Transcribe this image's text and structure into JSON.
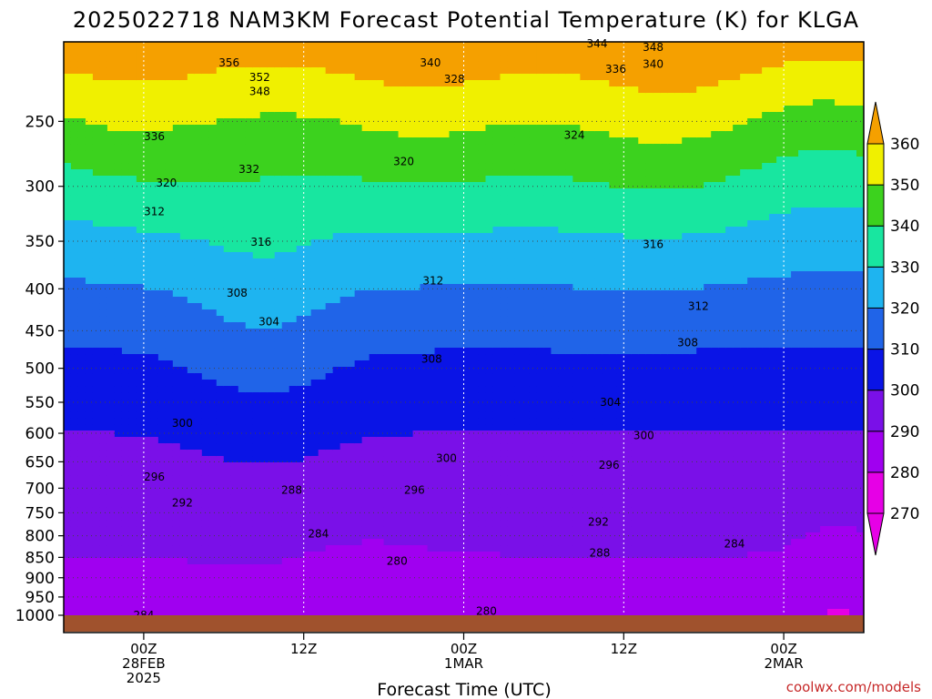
{
  "chart_data": {
    "type": "contour",
    "title": "2025022718 NAM3KM Forecast Potential Temperature (K) for KLGA",
    "xlabel": "Forecast Time (UTC)",
    "ylabel": "",
    "credit": "coolwx.com/models",
    "x_ticks": [
      {
        "hour": 6,
        "lines": [
          "00Z",
          "28FEB",
          "2025"
        ]
      },
      {
        "hour": 18,
        "lines": [
          "12Z"
        ]
      },
      {
        "hour": 30,
        "lines": [
          "00Z",
          "1MAR"
        ]
      },
      {
        "hour": 42,
        "lines": [
          "12Z"
        ]
      },
      {
        "hour": 54,
        "lines": [
          "00Z",
          "2MAR"
        ]
      }
    ],
    "x_range_hours": [
      0,
      60
    ],
    "y_ticks": [
      250,
      300,
      350,
      400,
      450,
      500,
      550,
      600,
      650,
      700,
      750,
      800,
      850,
      900,
      950,
      1000
    ],
    "y_range_hpa": [
      200,
      1000
    ],
    "y_scale": "log-pressure",
    "grid": true,
    "colorbar": {
      "levels": [
        270,
        280,
        290,
        300,
        310,
        320,
        330,
        340,
        350,
        360
      ],
      "colors": [
        "#e600e6",
        "#a000f0",
        "#7a10e8",
        "#0a14e6",
        "#2064e8",
        "#1eb4f0",
        "#18e6a0",
        "#3cd21e",
        "#f0f000",
        "#f5a000"
      ],
      "placement": "right"
    },
    "contour_interval": 4,
    "contour_labels": [
      {
        "value": "356",
        "hour": 12.4,
        "p": 212
      },
      {
        "value": "352",
        "hour": 14.7,
        "p": 221
      },
      {
        "value": "348",
        "hour": 14.7,
        "p": 230
      },
      {
        "value": "336",
        "hour": 6.8,
        "p": 261
      },
      {
        "value": "332",
        "hour": 13.9,
        "p": 286
      },
      {
        "value": "320",
        "hour": 7.7,
        "p": 297
      },
      {
        "value": "312",
        "hour": 6.8,
        "p": 322
      },
      {
        "value": "316",
        "hour": 14.8,
        "p": 351
      },
      {
        "value": "308",
        "hour": 13.0,
        "p": 405
      },
      {
        "value": "304",
        "hour": 15.4,
        "p": 439
      },
      {
        "value": "320",
        "hour": 25.5,
        "p": 280
      },
      {
        "value": "328",
        "hour": 29.3,
        "p": 222
      },
      {
        "value": "340",
        "hour": 27.5,
        "p": 212
      },
      {
        "value": "344",
        "hour": 40.0,
        "p": 201
      },
      {
        "value": "348",
        "hour": 44.2,
        "p": 203
      },
      {
        "value": "336",
        "hour": 41.4,
        "p": 216
      },
      {
        "value": "340",
        "hour": 44.2,
        "p": 213
      },
      {
        "value": "324",
        "hour": 38.3,
        "p": 260
      },
      {
        "value": "316",
        "hour": 44.2,
        "p": 353
      },
      {
        "value": "312",
        "hour": 27.7,
        "p": 391
      },
      {
        "value": "312",
        "hour": 47.6,
        "p": 420
      },
      {
        "value": "308",
        "hour": 27.6,
        "p": 487
      },
      {
        "value": "308",
        "hour": 46.8,
        "p": 465
      },
      {
        "value": "304",
        "hour": 41.0,
        "p": 550
      },
      {
        "value": "300",
        "hour": 8.9,
        "p": 583
      },
      {
        "value": "300",
        "hour": 28.7,
        "p": 644
      },
      {
        "value": "300",
        "hour": 43.5,
        "p": 604
      },
      {
        "value": "296",
        "hour": 6.8,
        "p": 678
      },
      {
        "value": "296",
        "hour": 26.3,
        "p": 704
      },
      {
        "value": "296",
        "hour": 40.9,
        "p": 656
      },
      {
        "value": "292",
        "hour": 8.9,
        "p": 729
      },
      {
        "value": "292",
        "hour": 40.1,
        "p": 770
      },
      {
        "value": "288",
        "hour": 17.1,
        "p": 704
      },
      {
        "value": "288",
        "hour": 40.2,
        "p": 839
      },
      {
        "value": "284",
        "hour": 19.1,
        "p": 796
      },
      {
        "value": "284",
        "hour": 50.3,
        "p": 818
      },
      {
        "value": "284",
        "hour": 6.0,
        "p": 1000
      },
      {
        "value": "280",
        "hour": 25.0,
        "p": 859
      },
      {
        "value": "280",
        "hour": 31.7,
        "p": 988
      }
    ]
  }
}
